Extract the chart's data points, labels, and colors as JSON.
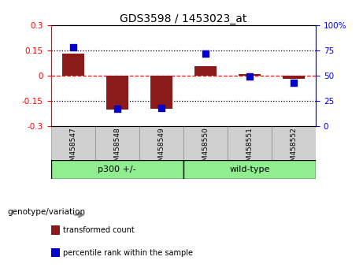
{
  "title": "GDS3598 / 1453023_at",
  "samples": [
    "GSM458547",
    "GSM458548",
    "GSM458549",
    "GSM458550",
    "GSM458551",
    "GSM458552"
  ],
  "group_labels": [
    "p300 +/-",
    "wild-type"
  ],
  "red_bars": [
    0.13,
    -0.2,
    -0.195,
    0.055,
    0.01,
    -0.02
  ],
  "blue_percentiles": [
    78,
    17,
    18,
    72,
    49,
    43
  ],
  "ylim_left": [
    -0.3,
    0.3
  ],
  "ylim_right": [
    0,
    100
  ],
  "yticks_left": [
    -0.3,
    -0.15,
    0.0,
    0.15,
    0.3
  ],
  "yticks_right": [
    0,
    25,
    50,
    75,
    100
  ],
  "ytick_labels_left": [
    "-0.3",
    "-0.15",
    "0",
    "0.15",
    "0.3"
  ],
  "ytick_labels_right": [
    "0",
    "25",
    "50",
    "75",
    "100%"
  ],
  "hlines_dotted": [
    0.15,
    -0.15
  ],
  "hline_red": 0.0,
  "bar_color": "#8B1A1A",
  "dot_color": "#0000CC",
  "bar_width": 0.5,
  "dot_size": 40,
  "legend_items": [
    "transformed count",
    "percentile rank within the sample"
  ],
  "xlabel_genotype": "genotype/variation",
  "p300_label": "p300 +/-",
  "wildtype_label": "wild-type",
  "group_green": "#90EE90",
  "sample_gray": "#D0D0D0",
  "n_p300": 3,
  "n_wildtype": 3
}
